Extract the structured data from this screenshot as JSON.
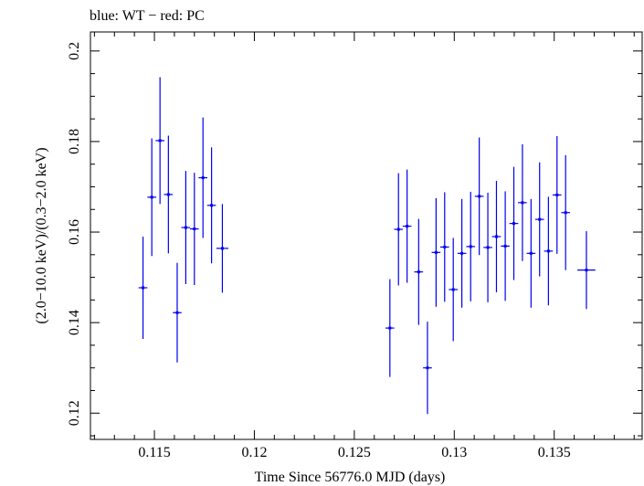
{
  "title": "blue: WT − red: PC",
  "chart_data": {
    "type": "scatter",
    "title": "blue: WT − red: PC",
    "xlabel": "Time Since 56776.0 MJD (days)",
    "ylabel": "(2.0−10.0 keV)/(0.3−2.0 keV)",
    "xlim": [
      0.1118,
      0.1394
    ],
    "ylim": [
      0.1142,
      0.2042
    ],
    "x_ticks": [
      0.115,
      0.12,
      0.125,
      0.13,
      0.135
    ],
    "x_tick_labels": [
      "0.115",
      "0.12",
      "0.125",
      "0.13",
      "0.135"
    ],
    "y_ticks": [
      0.12,
      0.14,
      0.16,
      0.18,
      0.2
    ],
    "y_tick_labels": [
      "0.12",
      "0.14",
      "0.16",
      "0.18",
      "0.2"
    ],
    "grid": false,
    "legend": "none",
    "series": [
      {
        "color": "#0000ee",
        "points": [
          {
            "x": 0.11443,
            "xerr": 0.00022,
            "y": 0.1477,
            "yerr": 0.0113
          },
          {
            "x": 0.11487,
            "xerr": 0.00022,
            "y": 0.1677,
            "yerr": 0.013
          },
          {
            "x": 0.11528,
            "xerr": 0.00022,
            "y": 0.1802,
            "yerr": 0.014
          },
          {
            "x": 0.1157,
            "xerr": 0.00022,
            "y": 0.1683,
            "yerr": 0.013
          },
          {
            "x": 0.11614,
            "xerr": 0.00022,
            "y": 0.1422,
            "yerr": 0.011
          },
          {
            "x": 0.11657,
            "xerr": 0.00022,
            "y": 0.161,
            "yerr": 0.0125
          },
          {
            "x": 0.117,
            "xerr": 0.00022,
            "y": 0.1607,
            "yerr": 0.0124
          },
          {
            "x": 0.11743,
            "xerr": 0.00022,
            "y": 0.172,
            "yerr": 0.0133
          },
          {
            "x": 0.11786,
            "xerr": 0.00022,
            "y": 0.1659,
            "yerr": 0.0128
          },
          {
            "x": 0.1184,
            "xerr": 0.0003,
            "y": 0.1564,
            "yerr": 0.0098
          },
          {
            "x": 0.12678,
            "xerr": 0.00022,
            "y": 0.1388,
            "yerr": 0.0108
          },
          {
            "x": 0.12721,
            "xerr": 0.00022,
            "y": 0.1606,
            "yerr": 0.0124
          },
          {
            "x": 0.12764,
            "xerr": 0.00022,
            "y": 0.1613,
            "yerr": 0.0125
          },
          {
            "x": 0.12822,
            "xerr": 0.00022,
            "y": 0.1512,
            "yerr": 0.0117
          },
          {
            "x": 0.12866,
            "xerr": 0.00022,
            "y": 0.13,
            "yerr": 0.0102
          },
          {
            "x": 0.12909,
            "xerr": 0.00022,
            "y": 0.1555,
            "yerr": 0.012
          },
          {
            "x": 0.12952,
            "xerr": 0.00022,
            "y": 0.1567,
            "yerr": 0.0121
          },
          {
            "x": 0.12995,
            "xerr": 0.00022,
            "y": 0.1473,
            "yerr": 0.0114
          },
          {
            "x": 0.13038,
            "xerr": 0.00022,
            "y": 0.1553,
            "yerr": 0.012
          },
          {
            "x": 0.13082,
            "xerr": 0.00022,
            "y": 0.1568,
            "yerr": 0.0121
          },
          {
            "x": 0.13125,
            "xerr": 0.00022,
            "y": 0.1679,
            "yerr": 0.013
          },
          {
            "x": 0.13168,
            "xerr": 0.00022,
            "y": 0.1566,
            "yerr": 0.0121
          },
          {
            "x": 0.13211,
            "xerr": 0.00022,
            "y": 0.159,
            "yerr": 0.0123
          },
          {
            "x": 0.13255,
            "xerr": 0.00022,
            "y": 0.1569,
            "yerr": 0.0121
          },
          {
            "x": 0.13298,
            "xerr": 0.00022,
            "y": 0.1619,
            "yerr": 0.0125
          },
          {
            "x": 0.13341,
            "xerr": 0.00022,
            "y": 0.1665,
            "yerr": 0.0129
          },
          {
            "x": 0.13384,
            "xerr": 0.00022,
            "y": 0.1553,
            "yerr": 0.012
          },
          {
            "x": 0.13427,
            "xerr": 0.00022,
            "y": 0.1628,
            "yerr": 0.0126
          },
          {
            "x": 0.13471,
            "xerr": 0.00022,
            "y": 0.1558,
            "yerr": 0.012
          },
          {
            "x": 0.13514,
            "xerr": 0.00022,
            "y": 0.1682,
            "yerr": 0.013
          },
          {
            "x": 0.13557,
            "xerr": 0.00022,
            "y": 0.1643,
            "yerr": 0.0127
          },
          {
            "x": 0.13661,
            "xerr": 0.00045,
            "y": 0.1516,
            "yerr": 0.0086
          }
        ]
      }
    ]
  }
}
